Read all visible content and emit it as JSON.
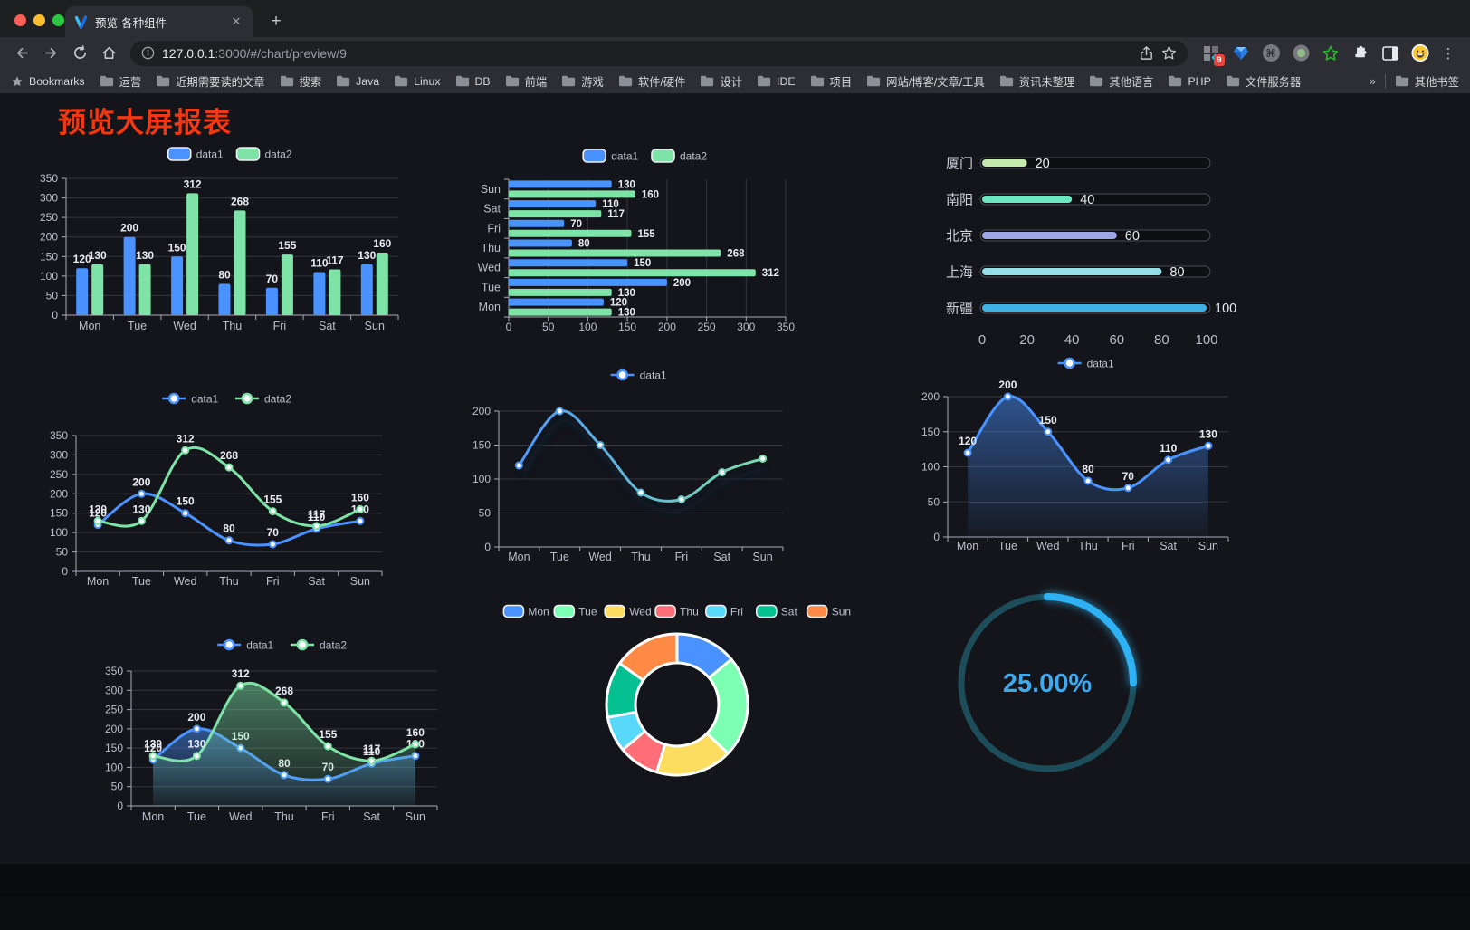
{
  "window": {
    "tab_title": "预览-各种组件",
    "close_tab": "✕",
    "new_tab": "+",
    "url_host": "127.0.0.1",
    "url_rest": ":3000/#/chart/preview/9",
    "extension_badge": "9",
    "menu_dots": "⋮"
  },
  "bookmarks_bar": {
    "bookmarks_label": "Bookmarks",
    "folders": [
      "运营",
      "近期需要读的文章",
      "搜索",
      "Java",
      "Linux",
      "DB",
      "前端",
      "游戏",
      "软件/硬件",
      "设计",
      "IDE",
      "项目",
      "网站/博客/文章/工具",
      "资讯未整理",
      "其他语言",
      "PHP",
      "文件服务器"
    ],
    "overflow_chevron": "»",
    "other_bookmarks": "其他书签"
  },
  "page": {
    "title": "预览大屏报表"
  },
  "colors": {
    "accent_blue": "#4992ff",
    "accent_green": "#7de3a6",
    "title_red": "#f23812",
    "page_bg": "#14151a"
  },
  "chart_data": [
    {
      "id": "bar-grouped-vertical",
      "type": "bar",
      "categories": [
        "Mon",
        "Tue",
        "Wed",
        "Thu",
        "Fri",
        "Sat",
        "Sun"
      ],
      "series": [
        {
          "name": "data1",
          "color": "#4992ff",
          "values": [
            120,
            200,
            150,
            80,
            70,
            110,
            130
          ]
        },
        {
          "name": "data2",
          "color": "#7de3a6",
          "values": [
            130,
            130,
            312,
            268,
            155,
            117,
            160
          ]
        }
      ],
      "ylim": [
        0,
        350
      ],
      "ystep": 50,
      "value_labels": true,
      "legend_position": "top",
      "grid": true
    },
    {
      "id": "bar-grouped-horizontal",
      "type": "bar-horizontal",
      "categories": [
        "Mon",
        "Tue",
        "Wed",
        "Thu",
        "Fri",
        "Sat",
        "Sun"
      ],
      "series": [
        {
          "name": "data1",
          "color": "#4992ff",
          "values": [
            120,
            200,
            150,
            80,
            70,
            110,
            130
          ]
        },
        {
          "name": "data2",
          "color": "#7de3a6",
          "values": [
            130,
            130,
            312,
            268,
            155,
            117,
            160
          ]
        }
      ],
      "xlim": [
        0,
        350
      ],
      "xstep": 50,
      "value_labels": true,
      "legend_position": "top",
      "grid": true
    },
    {
      "id": "progress-bars",
      "type": "progress",
      "items": [
        {
          "label": "厦门",
          "value": 20,
          "color": "#c4ebad"
        },
        {
          "label": "南阳",
          "value": 40,
          "color": "#6be6c1"
        },
        {
          "label": "北京",
          "value": 60,
          "color": "#a0a7e6"
        },
        {
          "label": "上海",
          "value": 80,
          "color": "#96dee8"
        },
        {
          "label": "新疆",
          "value": 100,
          "color": "#3fb1e3"
        }
      ],
      "xlim": [
        0,
        100
      ],
      "ticks": [
        0,
        20,
        40,
        60,
        80,
        100
      ]
    },
    {
      "id": "line-two-series",
      "type": "line",
      "categories": [
        "Mon",
        "Tue",
        "Wed",
        "Thu",
        "Fri",
        "Sat",
        "Sun"
      ],
      "series": [
        {
          "name": "data1",
          "color": "#4992ff",
          "values": [
            120,
            200,
            150,
            80,
            70,
            110,
            130
          ]
        },
        {
          "name": "data2",
          "color": "#7de3a6",
          "values": [
            130,
            130,
            312,
            268,
            155,
            117,
            160
          ]
        }
      ],
      "ylim": [
        0,
        350
      ],
      "ystep": 50,
      "value_labels": true,
      "legend_position": "top",
      "grid": true
    },
    {
      "id": "line-gradient",
      "type": "line",
      "categories": [
        "Mon",
        "Tue",
        "Wed",
        "Thu",
        "Fri",
        "Sat",
        "Sun"
      ],
      "series": [
        {
          "name": "data1",
          "color": "#4992ff",
          "gradient": [
            "#4992ff",
            "#7de3a6"
          ],
          "shadow": true,
          "values": [
            120,
            200,
            150,
            80,
            70,
            110,
            130
          ]
        }
      ],
      "ylim": [
        0,
        200
      ],
      "ystep": 50,
      "value_labels": false,
      "legend_position": "top",
      "grid": true
    },
    {
      "id": "line-area-single",
      "type": "line",
      "categories": [
        "Mon",
        "Tue",
        "Wed",
        "Thu",
        "Fri",
        "Sat",
        "Sun"
      ],
      "series": [
        {
          "name": "data1",
          "color": "#4992ff",
          "area": true,
          "values": [
            120,
            200,
            150,
            80,
            70,
            110,
            130
          ]
        }
      ],
      "ylim": [
        0,
        200
      ],
      "ystep": 50,
      "value_labels": true,
      "legend_position": "top",
      "grid": true
    },
    {
      "id": "line-area-two",
      "type": "line",
      "categories": [
        "Mon",
        "Tue",
        "Wed",
        "Thu",
        "Fri",
        "Sat",
        "Sun"
      ],
      "series": [
        {
          "name": "data1",
          "color": "#4992ff",
          "area": true,
          "values": [
            120,
            200,
            150,
            80,
            70,
            110,
            130
          ]
        },
        {
          "name": "data2",
          "color": "#7de3a6",
          "area": true,
          "values": [
            130,
            130,
            312,
            268,
            155,
            117,
            160
          ]
        }
      ],
      "ylim": [
        0,
        350
      ],
      "ystep": 50,
      "value_labels": true,
      "legend_position": "top",
      "grid": true
    },
    {
      "id": "donut",
      "type": "pie",
      "legend_position": "top",
      "items": [
        {
          "label": "Mon",
          "value": 120,
          "color": "#4992ff"
        },
        {
          "label": "Tue",
          "value": 200,
          "color": "#7cffb2"
        },
        {
          "label": "Wed",
          "value": 150,
          "color": "#fddd60"
        },
        {
          "label": "Thu",
          "value": 80,
          "color": "#ff6e76"
        },
        {
          "label": "Fri",
          "value": 70,
          "color": "#58d9f9"
        },
        {
          "label": "Sat",
          "value": 110,
          "color": "#05c091"
        },
        {
          "label": "Sun",
          "value": 130,
          "color": "#ff8a45"
        }
      ]
    },
    {
      "id": "gauge",
      "type": "gauge",
      "value": 25,
      "display": "25.00%",
      "color": "#2fb2f4",
      "text_color": "#3fa9ec",
      "track_color": "#1d4d5a"
    }
  ]
}
